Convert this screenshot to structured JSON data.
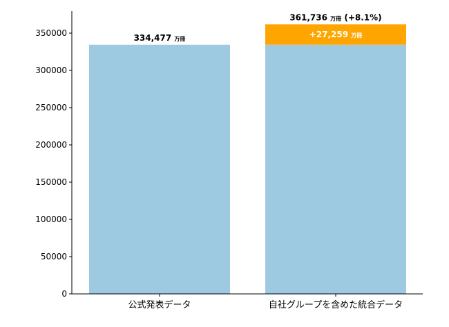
{
  "chart_data": {
    "type": "bar",
    "stacked": true,
    "categories": [
      "公式発表データ",
      "自社グループを含めた統合データ"
    ],
    "series": [
      {
        "values": [
          334477,
          334477
        ],
        "color": "#9ecae1"
      },
      {
        "values": [
          0,
          27259
        ],
        "color": "#ffa500"
      }
    ],
    "ylim": [
      0,
      350000
    ],
    "yticks": [
      0,
      50000,
      100000,
      150000,
      200000,
      250000,
      300000,
      350000
    ],
    "grid": false,
    "legend": "none",
    "data_labels": [
      {
        "value_text": "334,477",
        "unit": "万冊",
        "suffix": ""
      },
      {
        "value_text": "361,736",
        "unit": "万冊",
        "suffix": "(+8.1%)"
      }
    ],
    "increment_label": {
      "value_text": "+27,259",
      "unit": "万冊"
    }
  }
}
